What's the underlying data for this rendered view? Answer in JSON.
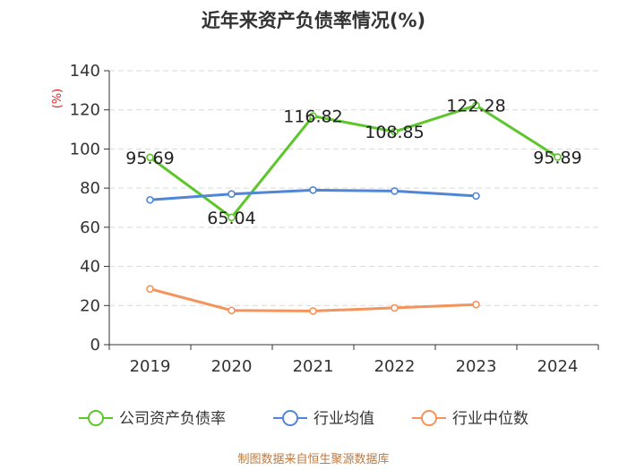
{
  "chart_data": {
    "type": "line",
    "title": "近年来资产负债率情况(%)",
    "ylabel": "(%)",
    "xlabel": "",
    "categories": [
      "2019",
      "2020",
      "2021",
      "2022",
      "2023",
      "2024"
    ],
    "ylim": [
      0,
      140
    ],
    "yticks": [
      0,
      20,
      40,
      60,
      80,
      100,
      120,
      140
    ],
    "grid": true,
    "legend_position": "bottom",
    "series": [
      {
        "name": "公司资产负债率",
        "color": "#5cc62a",
        "values": [
          95.69,
          65.04,
          116.82,
          108.85,
          122.28,
          95.89
        ],
        "labels": [
          "95.69",
          "65.04",
          "116.82",
          "108.85",
          "122.28",
          "95.89"
        ]
      },
      {
        "name": "行业均值",
        "color": "#4f86d8",
        "values": [
          74,
          77,
          79,
          78.5,
          76,
          null
        ]
      },
      {
        "name": "行业中位数",
        "color": "#f4935a",
        "values": [
          28.5,
          17.5,
          17.2,
          18.8,
          20.5,
          null
        ]
      }
    ]
  },
  "source": "制图数据来自恒生聚源数据库"
}
